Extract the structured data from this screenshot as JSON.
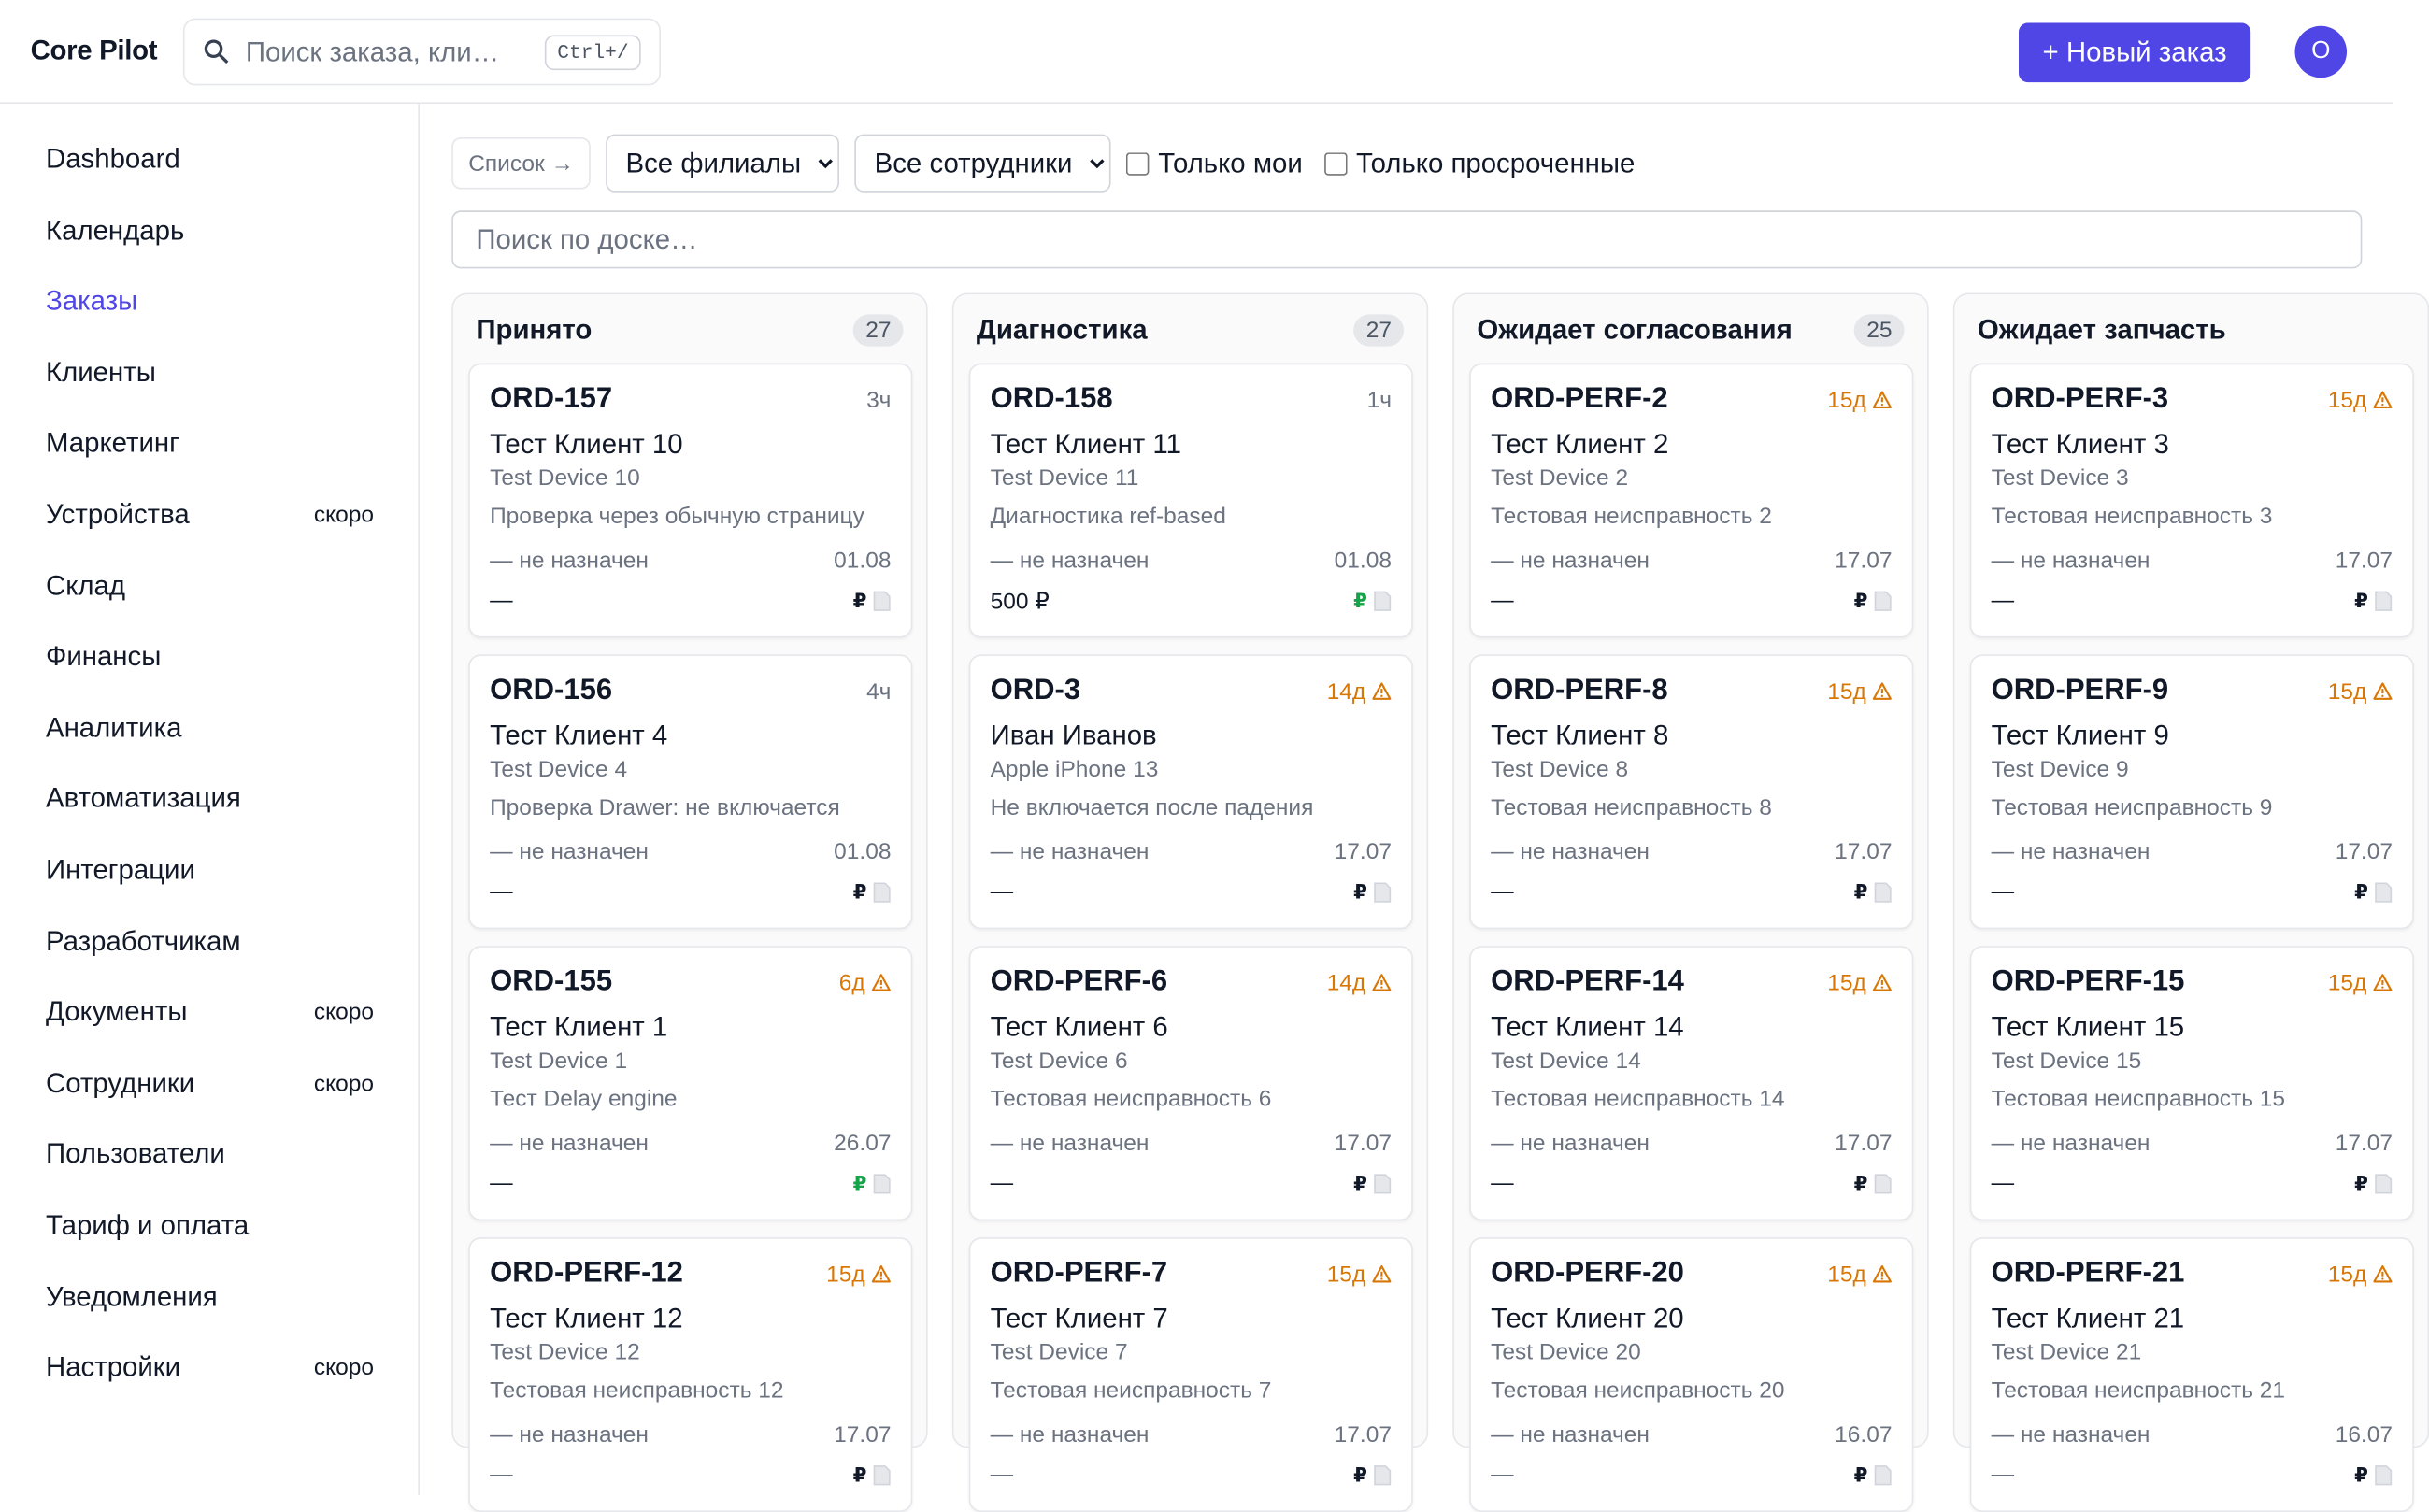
{
  "header": {
    "brand": "Core Pilot",
    "search_placeholder": "Поиск заказа, кли…",
    "shortcut": "Ctrl+/",
    "new_order": "+ Новый заказ",
    "avatar": "O"
  },
  "sidebar": [
    {
      "label": "Dashboard"
    },
    {
      "label": "Календарь"
    },
    {
      "label": "Заказы",
      "active": true
    },
    {
      "label": "Клиенты"
    },
    {
      "label": "Маркетинг"
    },
    {
      "label": "Устройства",
      "badge": "скоро"
    },
    {
      "label": "Склад"
    },
    {
      "label": "Финансы"
    },
    {
      "label": "Аналитика"
    },
    {
      "label": "Автоматизация"
    },
    {
      "label": "Интеграции"
    },
    {
      "label": "Разработчикам"
    },
    {
      "label": "Документы",
      "badge": "скоро"
    },
    {
      "label": "Сотрудники",
      "badge": "скоро"
    },
    {
      "label": "Пользователи"
    },
    {
      "label": "Тариф и оплата"
    },
    {
      "label": "Уведомления"
    },
    {
      "label": "Настройки",
      "badge": "скоро"
    }
  ],
  "toolbar": {
    "view": "Список →",
    "branches": "Все филиалы",
    "staff": "Все сотрудники",
    "only_mine": "Только мои",
    "only_overdue": "Только просроченные",
    "board_search": "Поиск по доске…"
  },
  "currency": "₽",
  "columns": [
    {
      "title": "Принято",
      "count": "27",
      "cards": [
        {
          "id": "ORD-157",
          "age": "3ч",
          "warn": false,
          "client": "Тест Клиент 10",
          "device": "Test Device 10",
          "issue": "Проверка через обычную страницу",
          "assignee": "— не назначен",
          "date": "01.08",
          "price": "—",
          "paid": false
        },
        {
          "id": "ORD-156",
          "age": "4ч",
          "warn": false,
          "client": "Тест Клиент 4",
          "device": "Test Device 4",
          "issue": "Проверка Drawer: не включается",
          "assignee": "— не назначен",
          "date": "01.08",
          "price": "—",
          "paid": false
        },
        {
          "id": "ORD-155",
          "age": "6д",
          "warn": true,
          "client": "Тест Клиент 1",
          "device": "Test Device 1",
          "issue": "Тест Delay engine",
          "assignee": "— не назначен",
          "date": "26.07",
          "price": "—",
          "paid": true
        },
        {
          "id": "ORD-PERF-12",
          "age": "15д",
          "warn": true,
          "client": "Тест Клиент 12",
          "device": "Test Device 12",
          "issue": "Тестовая неисправность 12",
          "assignee": "— не назначен",
          "date": "17.07",
          "price": "—",
          "paid": false
        }
      ]
    },
    {
      "title": "Диагностика",
      "count": "27",
      "cards": [
        {
          "id": "ORD-158",
          "age": "1ч",
          "warn": false,
          "client": "Тест Клиент 11",
          "device": "Test Device 11",
          "issue": "Диагностика ref-based",
          "assignee": "— не назначен",
          "date": "01.08",
          "price": "500 ₽",
          "paid": true
        },
        {
          "id": "ORD-3",
          "age": "14д",
          "warn": true,
          "client": "Иван Иванов",
          "device": "Apple iPhone 13",
          "issue": "Не включается после падения",
          "assignee": "— не назначен",
          "date": "17.07",
          "price": "—",
          "paid": false
        },
        {
          "id": "ORD-PERF-6",
          "age": "14д",
          "warn": true,
          "client": "Тест Клиент 6",
          "device": "Test Device 6",
          "issue": "Тестовая неисправность 6",
          "assignee": "— не назначен",
          "date": "17.07",
          "price": "—",
          "paid": false
        },
        {
          "id": "ORD-PERF-7",
          "age": "15д",
          "warn": true,
          "client": "Тест Клиент 7",
          "device": "Test Device 7",
          "issue": "Тестовая неисправность 7",
          "assignee": "— не назначен",
          "date": "17.07",
          "price": "—",
          "paid": false
        }
      ]
    },
    {
      "title": "Ожидает согласования",
      "count": "25",
      "cards": [
        {
          "id": "ORD-PERF-2",
          "age": "15д",
          "warn": true,
          "client": "Тест Клиент 2",
          "device": "Test Device 2",
          "issue": "Тестовая неисправность 2",
          "assignee": "— не назначен",
          "date": "17.07",
          "price": "—",
          "paid": false
        },
        {
          "id": "ORD-PERF-8",
          "age": "15д",
          "warn": true,
          "client": "Тест Клиент 8",
          "device": "Test Device 8",
          "issue": "Тестовая неисправность 8",
          "assignee": "— не назначен",
          "date": "17.07",
          "price": "—",
          "paid": false
        },
        {
          "id": "ORD-PERF-14",
          "age": "15д",
          "warn": true,
          "client": "Тест Клиент 14",
          "device": "Test Device 14",
          "issue": "Тестовая неисправность 14",
          "assignee": "— не назначен",
          "date": "17.07",
          "price": "—",
          "paid": false
        },
        {
          "id": "ORD-PERF-20",
          "age": "15д",
          "warn": true,
          "client": "Тест Клиент 20",
          "device": "Test Device 20",
          "issue": "Тестовая неисправность 20",
          "assignee": "— не назначен",
          "date": "16.07",
          "price": "—",
          "paid": false
        }
      ]
    },
    {
      "title": "Ожидает запчасть",
      "cards": [
        {
          "id": "ORD-PERF-3",
          "age": "15д",
          "warn": true,
          "client": "Тест Клиент 3",
          "device": "Test Device 3",
          "issue": "Тестовая неисправность 3",
          "assignee": "— не назначен",
          "date": "17.07",
          "price": "—",
          "paid": false
        },
        {
          "id": "ORD-PERF-9",
          "age": "15д",
          "warn": true,
          "client": "Тест Клиент 9",
          "device": "Test Device 9",
          "issue": "Тестовая неисправность 9",
          "assignee": "— не назначен",
          "date": "17.07",
          "price": "—",
          "paid": false
        },
        {
          "id": "ORD-PERF-15",
          "age": "15д",
          "warn": true,
          "client": "Тест Клиент 15",
          "device": "Test Device 15",
          "issue": "Тестовая неисправность 15",
          "assignee": "— не назначен",
          "date": "17.07",
          "price": "—",
          "paid": false
        },
        {
          "id": "ORD-PERF-21",
          "age": "15д",
          "warn": true,
          "client": "Тест Клиент 21",
          "device": "Test Device 21",
          "issue": "Тестовая неисправность 21",
          "assignee": "— не назначен",
          "date": "16.07",
          "price": "—",
          "paid": false
        }
      ]
    }
  ]
}
